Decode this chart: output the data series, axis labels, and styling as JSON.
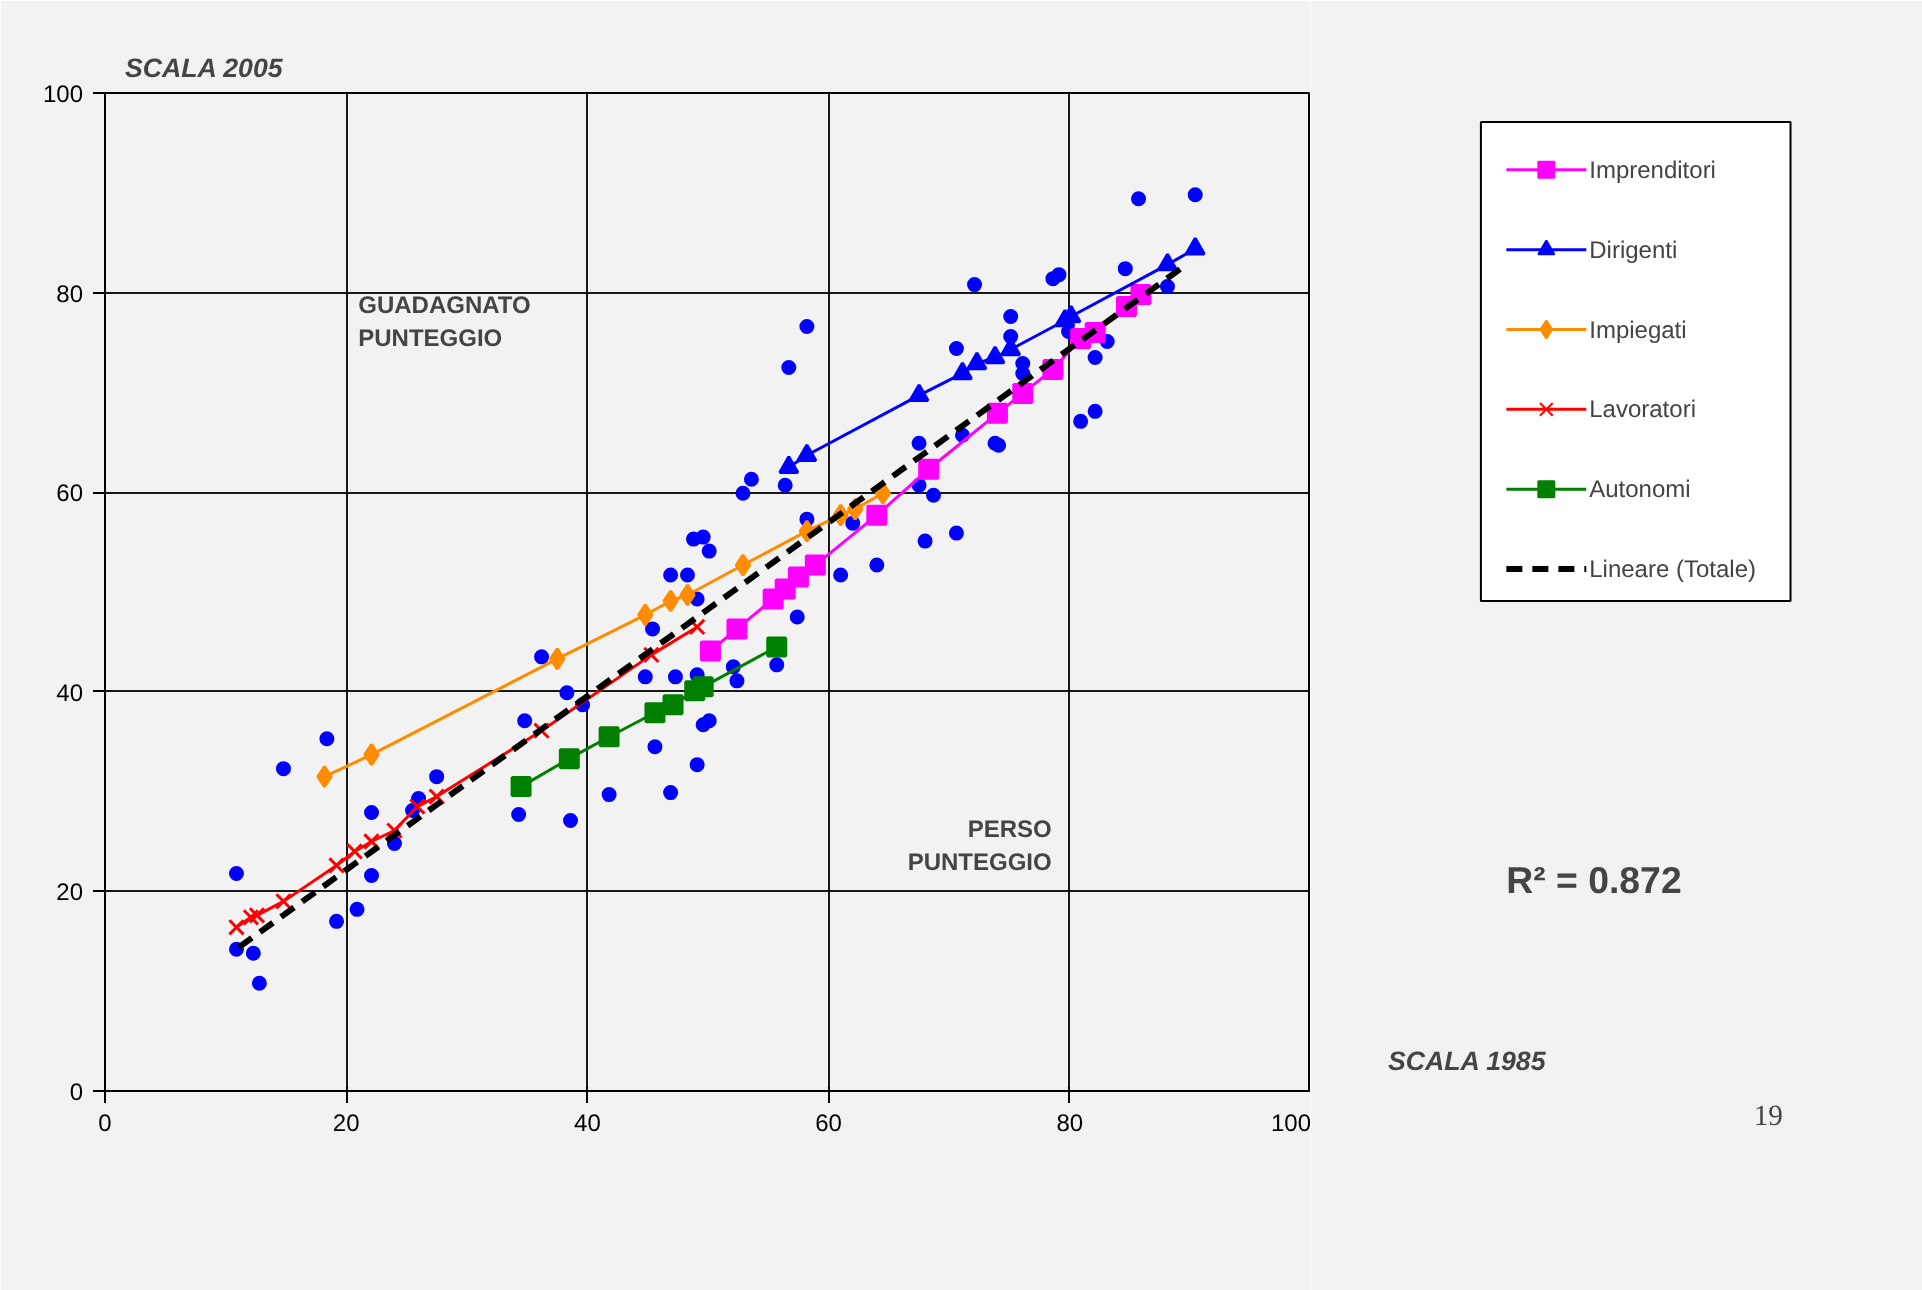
{
  "chart_data": {
    "type": "scatter",
    "ylabel": "SCALA 2005",
    "xlabel": "SCALA 1985",
    "xlim": [
      0,
      100
    ],
    "ylim": [
      0,
      100
    ],
    "xticks": [
      0,
      20,
      40,
      60,
      80,
      100
    ],
    "yticks": [
      0,
      20,
      40,
      60,
      80,
      100
    ],
    "grid": true,
    "legend": "right",
    "annotations": [
      "GUADAGNATO PUNTEGGIO",
      "PERSO PUNTEGGIO",
      "R² = 0.872",
      "19"
    ],
    "series": [
      {
        "color": "#0000ff",
        "marker": "circle",
        "x": [
          36.2,
          18.4,
          14.8,
          38.3,
          39.6,
          34.8,
          27.5,
          26.0,
          22.1,
          25.5,
          24.0,
          22.1,
          34.3,
          38.6,
          10.9,
          20.9,
          19.2,
          10.9,
          12.3,
          12.8,
          52.9,
          53.6,
          56.4,
          58.2,
          62.0,
          67.5,
          68.7,
          68.0,
          70.6,
          64.0,
          61.0,
          48.8,
          49.6,
          50.1,
          46.9,
          48.3,
          49.1,
          57.4,
          45.4,
          44.8,
          47.3,
          49.1,
          52.1,
          52.4,
          55.7,
          49.6,
          50.1,
          45.6,
          49.1,
          41.8,
          46.9,
          85.7,
          90.4,
          72.1,
          78.6,
          79.1,
          84.6,
          88.1,
          75.1,
          75.1,
          70.6,
          76.1,
          76.1,
          82.1,
          83.1,
          79.9,
          71.1,
          73.8,
          74.1,
          80.9,
          82.1,
          67.5,
          58.2,
          56.7
        ],
        "values": [
          43.5,
          35.3,
          32.3,
          39.9,
          38.7,
          37.1,
          31.5,
          29.3,
          27.9,
          28.1,
          24.8,
          21.6,
          27.7,
          27.1,
          21.8,
          18.2,
          17.0,
          14.2,
          13.8,
          10.8,
          59.9,
          61.3,
          60.7,
          57.3,
          56.9,
          60.7,
          59.7,
          55.1,
          55.9,
          52.7,
          51.7,
          55.3,
          55.5,
          54.1,
          51.7,
          51.7,
          49.3,
          47.5,
          46.3,
          41.5,
          41.5,
          41.7,
          42.5,
          41.1,
          42.7,
          36.7,
          37.1,
          34.5,
          32.7,
          29.7,
          29.9,
          89.4,
          89.8,
          80.8,
          81.4,
          81.8,
          82.4,
          80.6,
          77.6,
          75.6,
          74.4,
          72.9,
          71.9,
          73.5,
          75.1,
          76.1,
          65.7,
          64.9,
          64.7,
          67.1,
          68.1,
          64.9,
          76.6,
          72.5
        ]
      },
      {
        "type": "line",
        "name": "Imprenditori",
        "color": "#ff00ff",
        "marker": "square",
        "line_style": "solid",
        "x": [
          50.2,
          52.4,
          55.4,
          56.4,
          57.5,
          58.9,
          64.0,
          68.3,
          74.0,
          76.1,
          78.6,
          80.9,
          82.1,
          84.7,
          85.9
        ],
        "values": [
          44.1,
          46.3,
          49.3,
          50.3,
          51.5,
          52.7,
          57.7,
          62.3,
          67.9,
          69.9,
          72.3,
          75.4,
          76.0,
          78.6,
          79.8
        ]
      },
      {
        "type": "line",
        "name": "Dirigenti",
        "color": "#0000ff",
        "marker": "triangle",
        "line_style": "solid",
        "x": [
          56.7,
          58.2,
          67.5,
          71.1,
          72.3,
          73.8,
          75.1,
          79.6,
          80.1,
          88.1,
          90.4
        ],
        "values": [
          62.5,
          63.7,
          69.7,
          71.9,
          72.9,
          73.5,
          74.3,
          77.2,
          77.6,
          82.8,
          84.4
        ]
      },
      {
        "type": "line",
        "name": "Impiegati",
        "color": "#ff8c00",
        "marker": "diamond",
        "line_style": "solid",
        "x": [
          18.2,
          22.1,
          37.5,
          44.8,
          46.9,
          48.3,
          52.9,
          58.2,
          61.0,
          62.2,
          64.5
        ],
        "values": [
          31.5,
          33.7,
          43.3,
          47.7,
          49.1,
          49.7,
          52.7,
          56.1,
          57.7,
          58.3,
          59.9
        ]
      },
      {
        "type": "line",
        "name": "Lavoratori",
        "color": "#ff0000",
        "marker": "cross",
        "line_style": "solid",
        "x": [
          10.9,
          12.1,
          12.6,
          14.8,
          19.2,
          20.7,
          22.1,
          24.0,
          25.9,
          27.5,
          36.2,
          45.3,
          49.1
        ],
        "values": [
          16.4,
          17.4,
          17.6,
          19.0,
          22.6,
          24.0,
          25.0,
          26.1,
          28.5,
          29.5,
          36.1,
          43.7,
          46.5
        ]
      },
      {
        "type": "line",
        "name": "Autonomi",
        "color": "#008000",
        "marker": "square",
        "line_style": "solid",
        "x": [
          34.5,
          38.5,
          41.8,
          45.6,
          47.1,
          48.9,
          49.6,
          55.7
        ],
        "values": [
          30.5,
          33.3,
          35.5,
          37.9,
          38.7,
          40.1,
          40.5,
          44.5
        ]
      },
      {
        "type": "line",
        "name": "Lineare (Totale)",
        "color": "#000000",
        "marker": "none",
        "line_style": "dashed",
        "x": [
          11.1,
          89.2
        ],
        "values": [
          14.4,
          82.4
        ]
      }
    ]
  }
}
